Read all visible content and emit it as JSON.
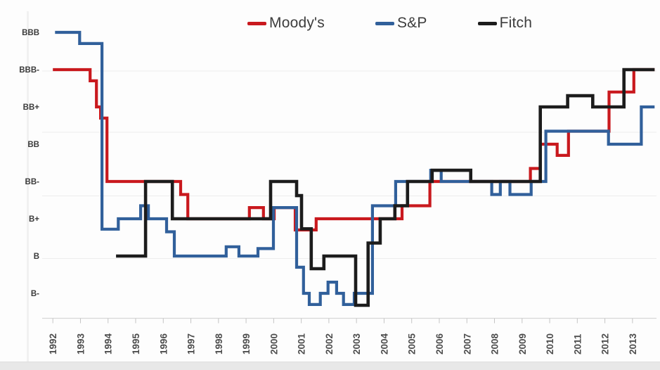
{
  "chart_data": {
    "type": "line",
    "subtype": "step",
    "title": "",
    "xlabel": "",
    "ylabel": "",
    "grid": true,
    "legend_position": "top",
    "x_ticks": [
      "1992",
      "1993",
      "1994",
      "1995",
      "1996",
      "1997",
      "1998",
      "1999",
      "2000",
      "2001",
      "2002",
      "2003",
      "2004",
      "2005",
      "2006",
      "2007",
      "2008",
      "2009",
      "2010",
      "2011",
      "2012",
      "2013"
    ],
    "x_range": [
      1992,
      2013.8
    ],
    "y_ticks": [
      "BBB",
      "BBB-",
      "BB+",
      "BB",
      "BB-",
      "B+",
      "B",
      "B-"
    ],
    "rating_scale": {
      "BBB": 10,
      "BBB-": 9,
      "BB+": 8,
      "BB": 7,
      "BB-": 6,
      "B+": 5,
      "B": 4,
      "B-": 3
    },
    "note": "step values in rating-notch units; fractional values are sub-notch plateaus as drawn",
    "series": [
      {
        "name": "Moody's",
        "color": "#c9191e",
        "width": 4.2,
        "end_x": 2013.8,
        "steps": [
          [
            1992.0,
            9.0
          ],
          [
            1993.35,
            8.7
          ],
          [
            1993.58,
            8.0
          ],
          [
            1993.73,
            7.7
          ],
          [
            1993.96,
            6.0
          ],
          [
            1996.63,
            5.65
          ],
          [
            1996.89,
            5.0
          ],
          [
            1999.12,
            5.3
          ],
          [
            1999.63,
            5.0
          ],
          [
            2000.02,
            5.3
          ],
          [
            2000.78,
            4.7
          ],
          [
            2001.54,
            5.0
          ],
          [
            2004.65,
            5.35
          ],
          [
            2005.66,
            6.0
          ],
          [
            2009.3,
            6.35
          ],
          [
            2009.66,
            7.0
          ],
          [
            2010.27,
            6.7
          ],
          [
            2010.68,
            7.35
          ],
          [
            2012.15,
            8.4
          ],
          [
            2013.05,
            9.0
          ]
        ]
      },
      {
        "name": "S&P",
        "color": "#31609b",
        "width": 4.2,
        "end_x": 2013.8,
        "steps": [
          [
            1992.08,
            10.0
          ],
          [
            1992.97,
            9.7
          ],
          [
            1993.78,
            4.72
          ],
          [
            1994.37,
            5.0
          ],
          [
            1995.18,
            5.35
          ],
          [
            1995.46,
            5.0
          ],
          [
            1996.12,
            4.65
          ],
          [
            1996.4,
            4.0
          ],
          [
            1998.28,
            4.25
          ],
          [
            1998.74,
            4.0
          ],
          [
            1999.43,
            4.2
          ],
          [
            1999.99,
            5.3
          ],
          [
            2000.83,
            3.7
          ],
          [
            2001.08,
            3.0
          ],
          [
            2001.29,
            2.7
          ],
          [
            2001.69,
            3.0
          ],
          [
            2001.97,
            3.3
          ],
          [
            2002.28,
            3.0
          ],
          [
            2002.53,
            2.7
          ],
          [
            2002.92,
            3.0
          ],
          [
            2003.58,
            5.35
          ],
          [
            2004.42,
            6.0
          ],
          [
            2005.69,
            6.3
          ],
          [
            2006.07,
            6.0
          ],
          [
            2007.9,
            5.65
          ],
          [
            2008.21,
            6.0
          ],
          [
            2008.56,
            5.65
          ],
          [
            2009.33,
            6.0
          ],
          [
            2009.86,
            7.35
          ],
          [
            2012.13,
            7.0
          ],
          [
            2013.32,
            8.0
          ]
        ]
      },
      {
        "name": "Fitch",
        "color": "#1c1c1c",
        "width": 4.6,
        "end_x": 2013.8,
        "steps": [
          [
            1994.29,
            4.0
          ],
          [
            1995.36,
            6.0
          ],
          [
            1996.33,
            5.0
          ],
          [
            1999.89,
            6.0
          ],
          [
            2000.83,
            5.62
          ],
          [
            2001.01,
            4.73
          ],
          [
            2001.36,
            3.66
          ],
          [
            2001.82,
            4.0
          ],
          [
            2002.97,
            2.68
          ],
          [
            2003.42,
            4.35
          ],
          [
            2003.86,
            5.0
          ],
          [
            2004.39,
            5.35
          ],
          [
            2004.85,
            6.0
          ],
          [
            2005.74,
            6.3
          ],
          [
            2007.14,
            6.0
          ],
          [
            2009.66,
            8.0
          ],
          [
            2010.65,
            8.3
          ],
          [
            2011.56,
            8.0
          ],
          [
            2012.69,
            9.0
          ]
        ]
      }
    ]
  },
  "colors": {
    "axis_line": "#d8d8d8",
    "tick": "#c4c4c4",
    "gridline": "#ededed",
    "x_label": "#4d4d4d",
    "y_label": "#3b3b3b",
    "footer_band": "#e8e8e8"
  }
}
